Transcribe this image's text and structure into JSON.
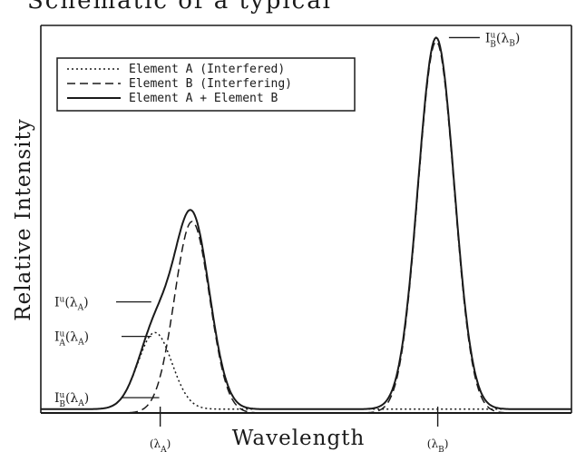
{
  "title": "Schematic of a typical",
  "chart_data": {
    "type": "line",
    "xlabel": "Wavelength",
    "ylabel": "Relative Intensity",
    "xlim": [
      0,
      100
    ],
    "ylim": [
      0,
      100
    ],
    "grid": false,
    "legend_position": "top-left",
    "series": [
      {
        "name": "Element A (Interfered)",
        "style": "dotted",
        "peaks": [
          {
            "center": 21.5,
            "height": 20,
            "width": 3.2
          }
        ],
        "baseline": 1
      },
      {
        "name": "Element B (Interfering)",
        "style": "dashed",
        "peaks": [
          {
            "center": 28.5,
            "height": 50,
            "width": 3.3
          },
          {
            "center": 74.5,
            "height": 97,
            "width": 3.4
          }
        ],
        "baseline": 0
      },
      {
        "name": "Element A + Element B",
        "style": "solid",
        "peaks": [
          {
            "center": 21.5,
            "height": 20,
            "width": 3.2
          },
          {
            "center": 28.5,
            "height": 50,
            "width": 3.3
          },
          {
            "center": 74.5,
            "height": 97,
            "width": 3.4
          }
        ],
        "baseline": 1
      }
    ],
    "x_ticks": [
      {
        "x": 22.5,
        "label": "(λA)"
      },
      {
        "x": 74.8,
        "label": "(λB)"
      }
    ],
    "annotations": [
      {
        "text": "Iu(λA)",
        "main": "I",
        "sup": "u",
        "sub": "",
        "arg": "(λA)",
        "x": 21.5,
        "y": 29,
        "dir": "left"
      },
      {
        "text": "IuA(λA)",
        "main": "I",
        "sup": "u",
        "sub": "A",
        "arg": "(λA)",
        "x": 21.5,
        "y": 20,
        "dir": "left"
      },
      {
        "text": "IuB(λA)",
        "main": "I",
        "sup": "u",
        "sub": "B",
        "arg": "(λA)",
        "x": 23,
        "y": 4,
        "dir": "left"
      },
      {
        "text": "IuB(λB)",
        "main": "I",
        "sup": "u",
        "sub": "B",
        "arg": "(λB)",
        "x": 75.2,
        "y": 98,
        "dir": "right"
      }
    ]
  }
}
